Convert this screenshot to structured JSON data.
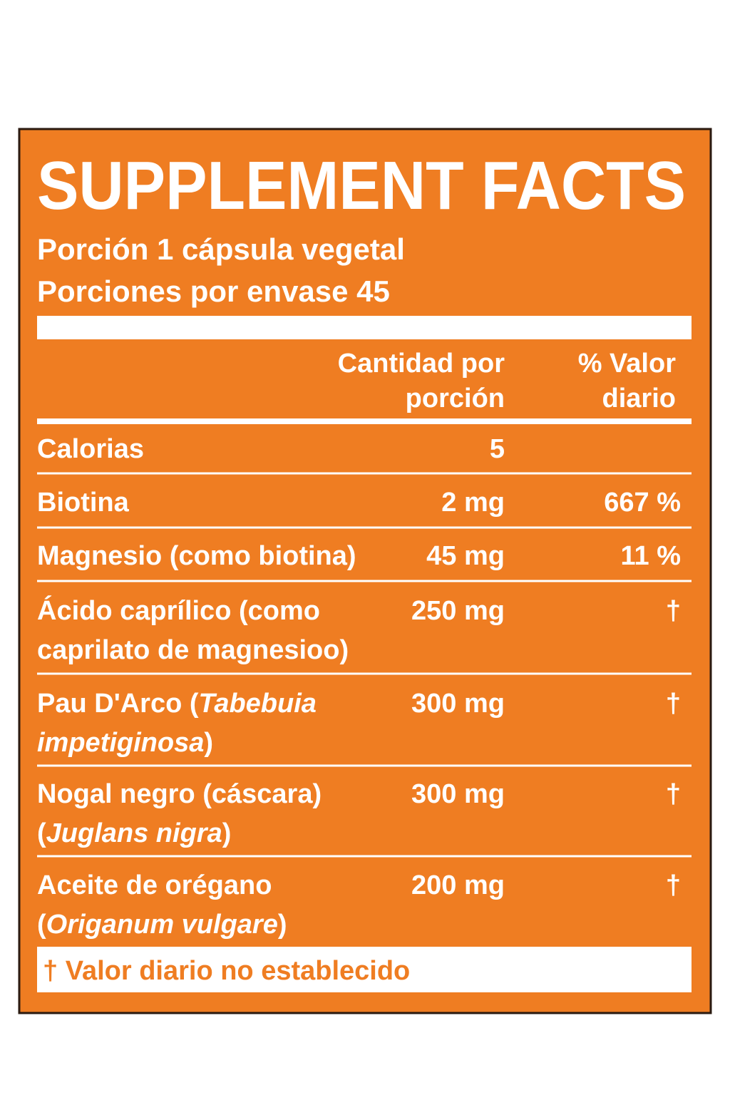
{
  "title": "SUPPLEMENT FACTS",
  "serving": [
    "Porción 1 cápsula vegetal",
    "Porciones por envase 45"
  ],
  "table": {
    "header": {
      "amount": [
        "Cantidad por",
        "porción"
      ],
      "daily_value": [
        "% Valor",
        "diario"
      ]
    },
    "rows": [
      {
        "name": [
          [
            {
              "text": "Calorias"
            }
          ]
        ],
        "amount": "5"
      },
      {
        "name": [
          [
            {
              "text": "Biotina"
            }
          ]
        ],
        "amount": "2 mg",
        "daily_value": "667 %"
      },
      {
        "name": [
          [
            {
              "text": "Magnesio (como biotina)"
            }
          ]
        ],
        "amount": "45 mg",
        "daily_value": "11 %"
      },
      {
        "name": [
          [
            {
              "text": "Ácido caprílico (como"
            }
          ],
          [
            {
              "text": "caprilato de magnesioo)"
            }
          ]
        ],
        "amount": "250 mg",
        "daily_value": "†"
      },
      {
        "name": [
          [
            {
              "text": "Pau D'Arco ("
            },
            {
              "text": "Tabebuia",
              "style": "italic"
            }
          ],
          [
            {
              "text": "impetiginosa",
              "style": "italic"
            },
            {
              "text": ")"
            }
          ]
        ],
        "amount": "300 mg",
        "daily_value": "†"
      },
      {
        "name": [
          [
            {
              "text": "Nogal negro (cáscara)"
            }
          ],
          [
            {
              "text": "("
            },
            {
              "text": "Juglans nigra",
              "style": "italic"
            },
            {
              "text": ")"
            }
          ]
        ],
        "amount": "300 mg",
        "daily_value": "†"
      },
      {
        "name": [
          [
            {
              "text": "Aceite de orégano"
            }
          ],
          [
            {
              "text": "("
            },
            {
              "text": "Origanum vulgare",
              "style": "italic"
            },
            {
              "text": ")"
            }
          ]
        ],
        "amount": "200 mg",
        "daily_value": "†"
      }
    ]
  },
  "footnote": "† Valor diario no establecido"
}
